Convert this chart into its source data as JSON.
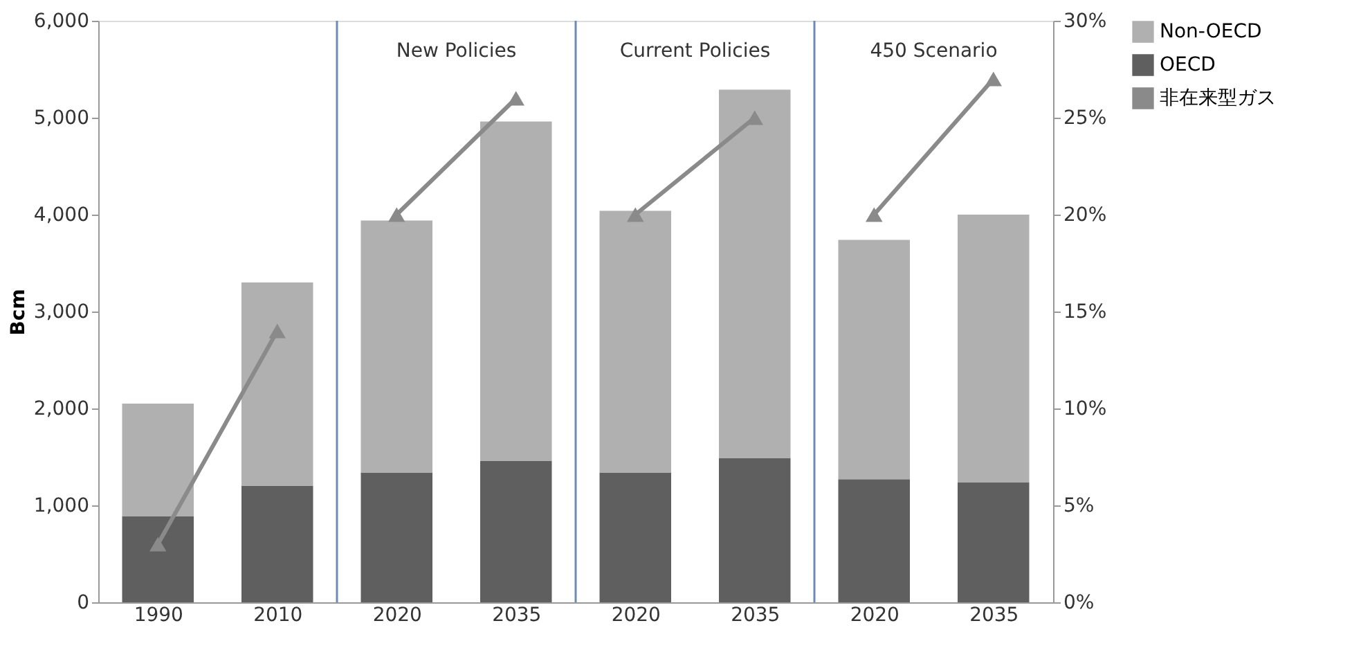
{
  "chart_data": {
    "type": "bar",
    "stacked": true,
    "ylabel": "Bcm",
    "categories": [
      "1990",
      "2010",
      "2020",
      "2035",
      "2020",
      "2035",
      "2020",
      "2035"
    ],
    "series": [
      {
        "name": "OECD",
        "color": "#5f5f5f",
        "values": [
          890,
          1200,
          1340,
          1460,
          1340,
          1490,
          1270,
          1240
        ]
      },
      {
        "name": "Non-OECD",
        "color": "#b0b0b0",
        "values": [
          1160,
          2100,
          2600,
          3500,
          2700,
          3800,
          2470,
          2760
        ]
      },
      {
        "name": "非在来型ガス",
        "type": "line",
        "axis": "y2",
        "color": "#8a8a8a",
        "marker": "triangle",
        "values": [
          3,
          14,
          20,
          26,
          20,
          25,
          20,
          27
        ]
      }
    ],
    "ylim": [
      0,
      6000
    ],
    "yticks": [
      {
        "value": 0,
        "label": "0"
      },
      {
        "value": 1000,
        "label": "1,000"
      },
      {
        "value": 2000,
        "label": "2,000"
      },
      {
        "value": 3000,
        "label": "3,000"
      },
      {
        "value": 4000,
        "label": "4,000"
      },
      {
        "value": 5000,
        "label": "5,000"
      },
      {
        "value": 6000,
        "label": "6,000"
      }
    ],
    "y2lim": [
      0,
      30
    ],
    "y2ticks": [
      {
        "value": 0,
        "label": "0%"
      },
      {
        "value": 5,
        "label": "5%"
      },
      {
        "value": 10,
        "label": "10%"
      },
      {
        "value": 15,
        "label": "15%"
      },
      {
        "value": 20,
        "label": "20%"
      },
      {
        "value": 25,
        "label": "25%"
      },
      {
        "value": 30,
        "label": "30%"
      }
    ],
    "annotations": [
      "New Policies",
      "Current Policies",
      "450 Scenario"
    ],
    "grid": false,
    "legend": "right"
  }
}
